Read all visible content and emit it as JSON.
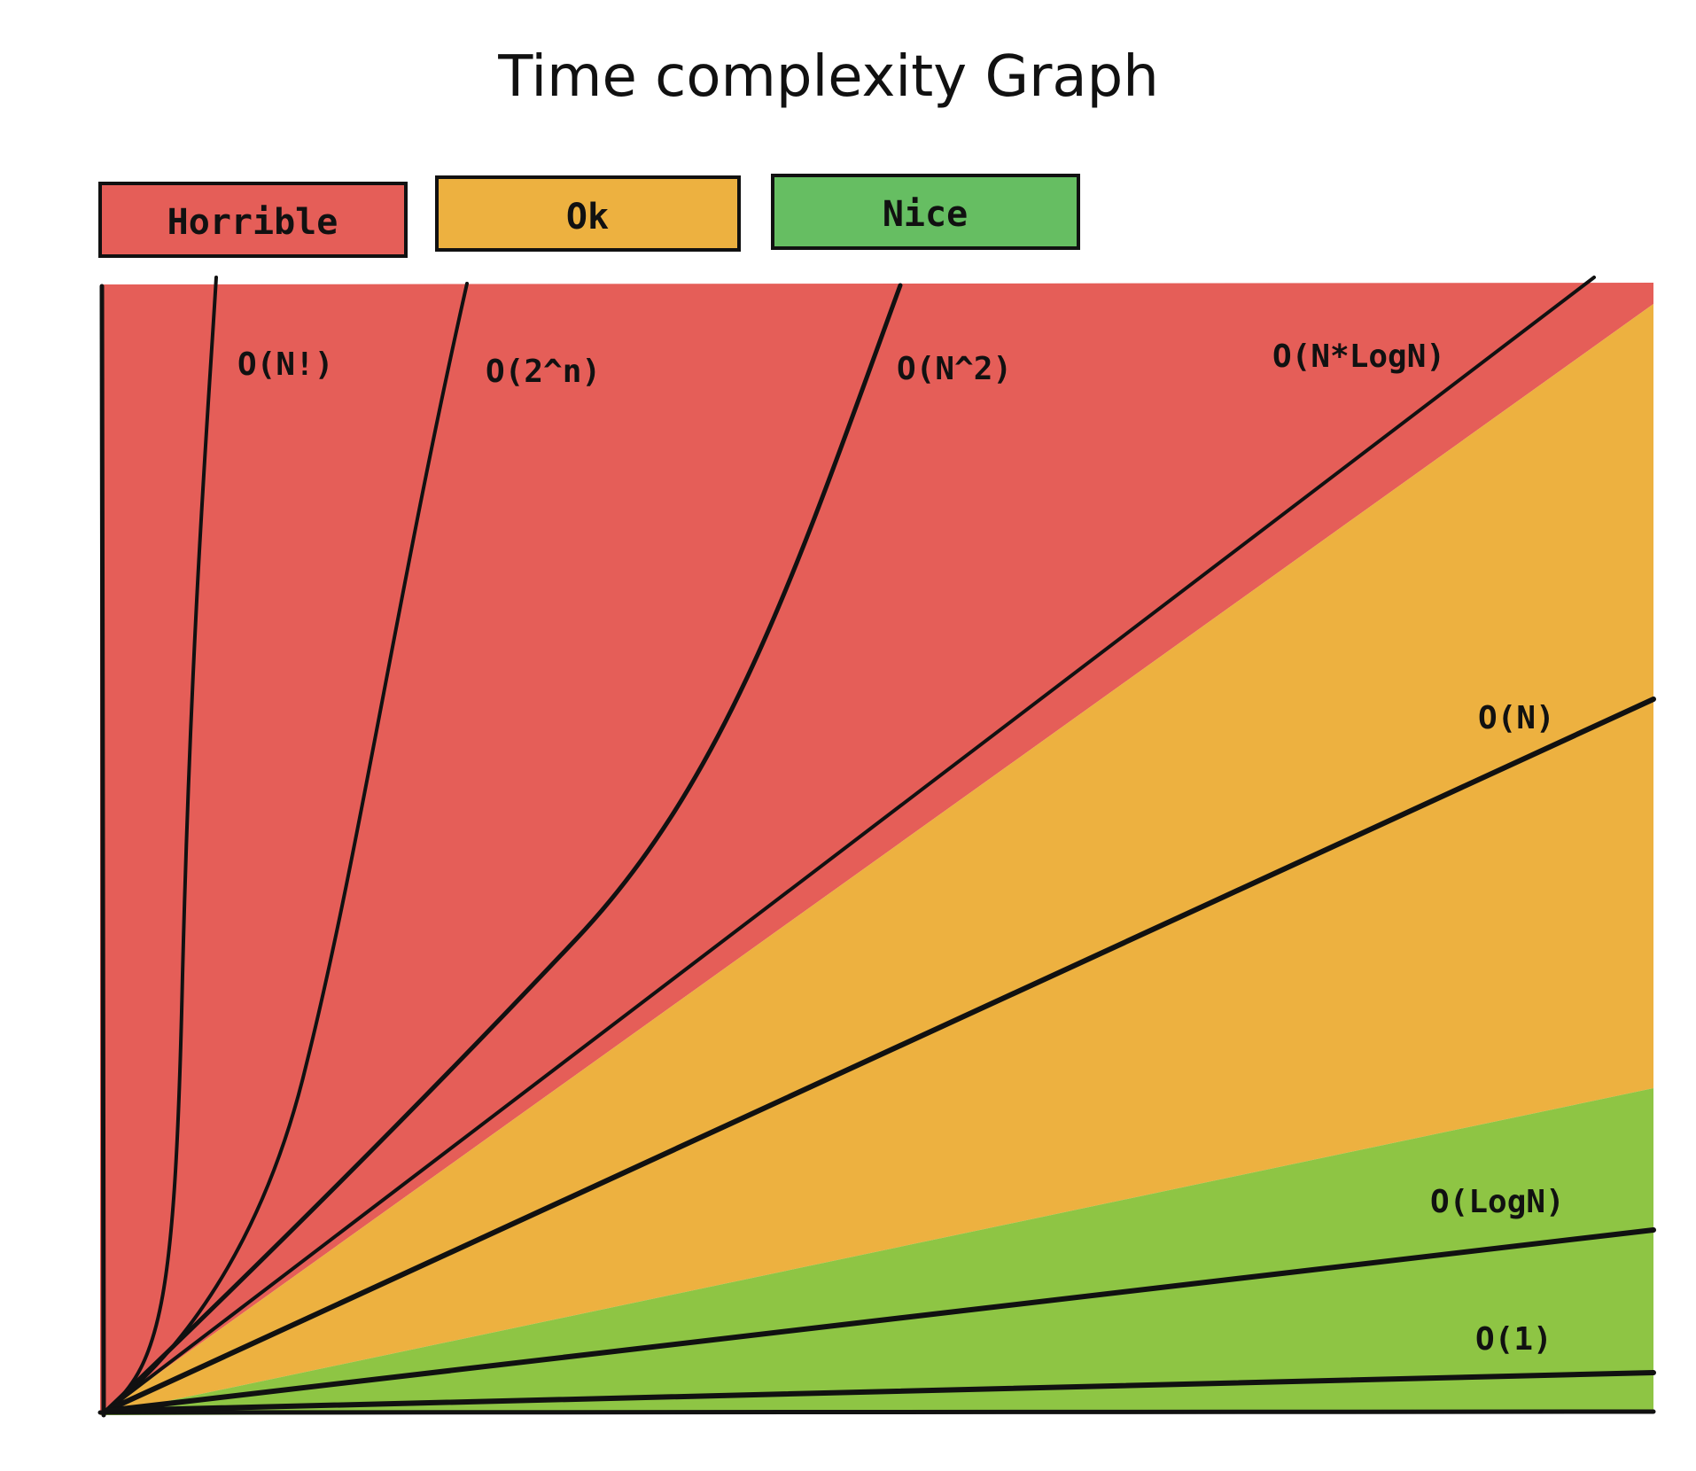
{
  "chart_data": {
    "type": "area",
    "title": "Time complexity Graph",
    "legend": {
      "placement": "top-left",
      "items": [
        {
          "label": "Horrible",
          "color": "#E55E58"
        },
        {
          "label": "Ok",
          "color": "#EDB140"
        },
        {
          "label": "Nice",
          "color": "#66BE62"
        }
      ]
    },
    "zones": [
      {
        "name": "Horrible",
        "color": "#E55E58"
      },
      {
        "name": "Ok",
        "color": "#EDB140"
      },
      {
        "name": "Nice",
        "color": "#8EC544"
      }
    ],
    "series": [
      {
        "name": "O(N!)",
        "zone": "Horrible",
        "style": "curve"
      },
      {
        "name": "O(2^n)",
        "zone": "Horrible",
        "style": "curve"
      },
      {
        "name": "O(N^2)",
        "zone": "Horrible",
        "style": "curve"
      },
      {
        "name": "O(N*LogN)",
        "zone": "Horrible",
        "style": "line"
      },
      {
        "name": "O(N)",
        "zone": "Ok",
        "style": "line"
      },
      {
        "name": "O(LogN)",
        "zone": "Nice",
        "style": "line"
      },
      {
        "name": "O(1)",
        "zone": "Nice",
        "style": "line"
      }
    ],
    "xlabel": "",
    "ylabel": "",
    "grid": false
  }
}
